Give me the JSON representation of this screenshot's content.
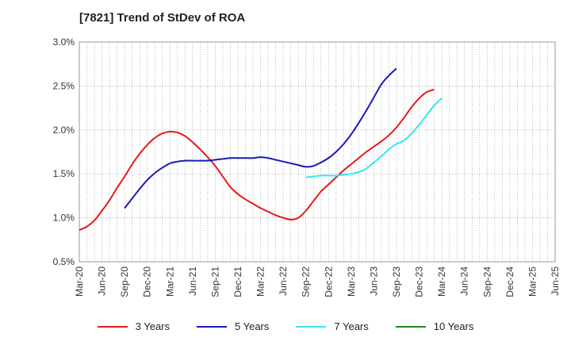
{
  "header": {
    "title": "[7821]  Trend of StDev of ROA"
  },
  "colors": {
    "3y": "#e31b1b",
    "5y": "#1a1aba",
    "7y": "#33e6ef",
    "10y": "#1f8a1f"
  },
  "legend": [
    {
      "label": "3 Years",
      "color": "#e31b1b"
    },
    {
      "label": "5 Years",
      "color": "#1a1aba"
    },
    {
      "label": "7 Years",
      "color": "#33e6ef"
    },
    {
      "label": "10 Years",
      "color": "#1f8a1f"
    }
  ],
  "chart_data": {
    "type": "line",
    "title": "[7821]  Trend of StDev of ROA",
    "x_labels": [
      "Mar-20",
      "Jun-20",
      "Sep-20",
      "Dec-20",
      "Mar-21",
      "Jun-21",
      "Sep-21",
      "Dec-21",
      "Mar-22",
      "Jun-22",
      "Sep-22",
      "Dec-22",
      "Mar-23",
      "Jun-23",
      "Sep-23",
      "Dec-23",
      "Mar-24",
      "Jun-24",
      "Sep-24",
      "Dec-24",
      "Mar-25",
      "Jun-25"
    ],
    "y_ticks": [
      "0.5%",
      "1.0%",
      "1.5%",
      "2.0%",
      "2.5%",
      "3.0%"
    ],
    "ylim": [
      0.5,
      3.0
    ],
    "grid": true,
    "legend_position": "bottom",
    "series": [
      {
        "name": "3 Years",
        "color": "#e31b1b",
        "points": [
          [
            "Mar-20",
            0.86
          ],
          [
            "Apr-20",
            0.9
          ],
          [
            "May-20",
            0.97
          ],
          [
            "Jun-20",
            1.08
          ],
          [
            "Jul-20",
            1.2
          ],
          [
            "Aug-20",
            1.34
          ],
          [
            "Sep-20",
            1.47
          ],
          [
            "Oct-20",
            1.61
          ],
          [
            "Nov-20",
            1.73
          ],
          [
            "Dec-20",
            1.83
          ],
          [
            "Jan-21",
            1.91
          ],
          [
            "Feb-21",
            1.96
          ],
          [
            "Mar-21",
            1.98
          ],
          [
            "Apr-21",
            1.97
          ],
          [
            "May-21",
            1.93
          ],
          [
            "Jun-21",
            1.86
          ],
          [
            "Jul-21",
            1.78
          ],
          [
            "Aug-21",
            1.69
          ],
          [
            "Sep-21",
            1.59
          ],
          [
            "Oct-21",
            1.47
          ],
          [
            "Nov-21",
            1.35
          ],
          [
            "Dec-21",
            1.27
          ],
          [
            "Jan-22",
            1.21
          ],
          [
            "Feb-22",
            1.16
          ],
          [
            "Mar-22",
            1.11
          ],
          [
            "Apr-22",
            1.07
          ],
          [
            "May-22",
            1.03
          ],
          [
            "Jun-22",
            1.0
          ],
          [
            "Jul-22",
            0.98
          ],
          [
            "Aug-22",
            1.0
          ],
          [
            "Sep-22",
            1.08
          ],
          [
            "Oct-22",
            1.19
          ],
          [
            "Nov-22",
            1.3
          ],
          [
            "Dec-22",
            1.38
          ],
          [
            "Jan-23",
            1.46
          ],
          [
            "Feb-23",
            1.54
          ],
          [
            "Mar-23",
            1.61
          ],
          [
            "Apr-23",
            1.68
          ],
          [
            "May-23",
            1.75
          ],
          [
            "Jun-23",
            1.81
          ],
          [
            "Jul-23",
            1.87
          ],
          [
            "Aug-23",
            1.94
          ],
          [
            "Sep-23",
            2.03
          ],
          [
            "Oct-23",
            2.14
          ],
          [
            "Nov-23",
            2.26
          ],
          [
            "Dec-23",
            2.36
          ],
          [
            "Jan-24",
            2.43
          ],
          [
            "Feb-24",
            2.46
          ]
        ]
      },
      {
        "name": "5 Years",
        "color": "#1a1aba",
        "points": [
          [
            "Sep-20",
            1.11
          ],
          [
            "Oct-20",
            1.22
          ],
          [
            "Nov-20",
            1.33
          ],
          [
            "Dec-20",
            1.43
          ],
          [
            "Jan-21",
            1.51
          ],
          [
            "Feb-21",
            1.57
          ],
          [
            "Mar-21",
            1.62
          ],
          [
            "Apr-21",
            1.64
          ],
          [
            "May-21",
            1.65
          ],
          [
            "Jun-21",
            1.65
          ],
          [
            "Jul-21",
            1.65
          ],
          [
            "Aug-21",
            1.65
          ],
          [
            "Sep-21",
            1.66
          ],
          [
            "Oct-21",
            1.67
          ],
          [
            "Nov-21",
            1.68
          ],
          [
            "Dec-21",
            1.68
          ],
          [
            "Jan-22",
            1.68
          ],
          [
            "Feb-22",
            1.68
          ],
          [
            "Mar-22",
            1.69
          ],
          [
            "Apr-22",
            1.68
          ],
          [
            "May-22",
            1.66
          ],
          [
            "Jun-22",
            1.64
          ],
          [
            "Jul-22",
            1.62
          ],
          [
            "Aug-22",
            1.6
          ],
          [
            "Sep-22",
            1.58
          ],
          [
            "Oct-22",
            1.59
          ],
          [
            "Nov-22",
            1.63
          ],
          [
            "Dec-22",
            1.68
          ],
          [
            "Jan-23",
            1.75
          ],
          [
            "Feb-23",
            1.84
          ],
          [
            "Mar-23",
            1.95
          ],
          [
            "Apr-23",
            2.08
          ],
          [
            "May-23",
            2.22
          ],
          [
            "Jun-23",
            2.37
          ],
          [
            "Jul-23",
            2.52
          ],
          [
            "Aug-23",
            2.62
          ],
          [
            "Sep-23",
            2.7
          ]
        ]
      },
      {
        "name": "7 Years",
        "color": "#33e6ef",
        "points": [
          [
            "Sep-22",
            1.46
          ],
          [
            "Oct-22",
            1.47
          ],
          [
            "Nov-22",
            1.48
          ],
          [
            "Dec-22",
            1.48
          ],
          [
            "Jan-23",
            1.48
          ],
          [
            "Feb-23",
            1.49
          ],
          [
            "Mar-23",
            1.5
          ],
          [
            "Apr-23",
            1.52
          ],
          [
            "May-23",
            1.56
          ],
          [
            "Jun-23",
            1.63
          ],
          [
            "Jul-23",
            1.7
          ],
          [
            "Aug-23",
            1.78
          ],
          [
            "Sep-23",
            1.84
          ],
          [
            "Oct-23",
            1.88
          ],
          [
            "Nov-23",
            1.96
          ],
          [
            "Dec-23",
            2.06
          ],
          [
            "Jan-24",
            2.17
          ],
          [
            "Feb-24",
            2.28
          ],
          [
            "Mar-24",
            2.36
          ]
        ]
      },
      {
        "name": "10 Years",
        "color": "#1f8a1f",
        "points": []
      }
    ]
  }
}
